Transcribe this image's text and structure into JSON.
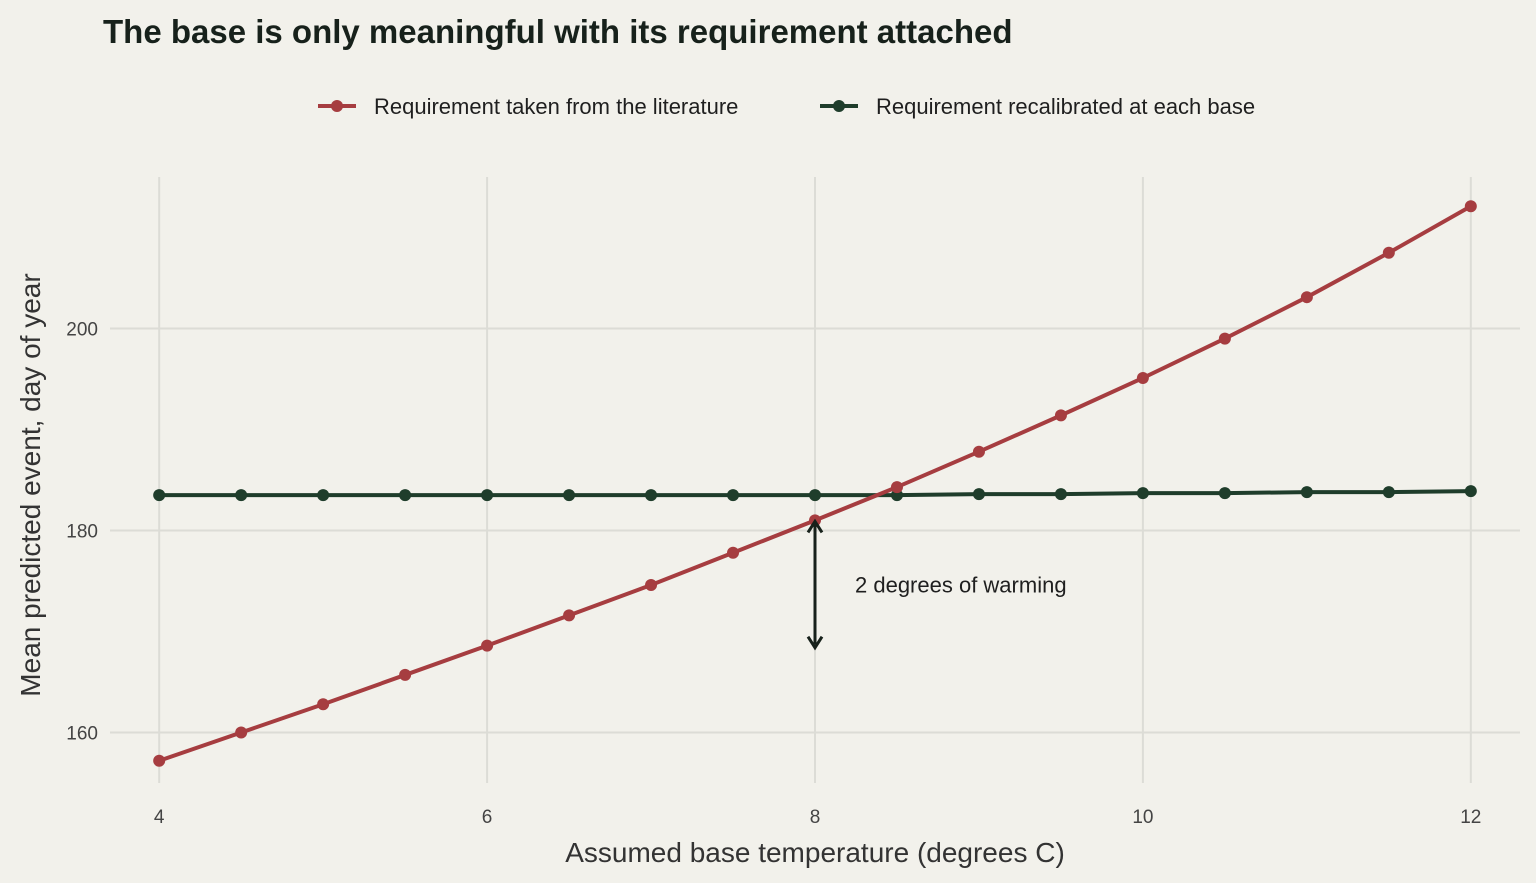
{
  "chart_data": {
    "type": "line",
    "title": "The base is only meaningful with its requirement attached",
    "xlabel": "Assumed base temperature (degrees C)",
    "ylabel": "Mean predicted event, day of year",
    "xlim": [
      3.7,
      12.3
    ],
    "ylim": [
      155,
      215
    ],
    "xticks": [
      4,
      6,
      8,
      10,
      12
    ],
    "yticks": [
      160,
      180,
      200
    ],
    "x": [
      4,
      4.5,
      5,
      5.5,
      6,
      6.5,
      7,
      7.5,
      8,
      8.5,
      9,
      9.5,
      10,
      10.5,
      11,
      11.5,
      12
    ],
    "series": [
      {
        "name": "Requirement taken from the literature",
        "color": "#a63d40",
        "values": [
          157.2,
          160.0,
          162.8,
          165.7,
          168.6,
          171.6,
          174.6,
          177.8,
          181.0,
          184.3,
          187.8,
          191.4,
          195.1,
          199.0,
          203.1,
          207.5,
          212.1
        ]
      },
      {
        "name": "Requirement recalibrated at each base",
        "color": "#1f3d2b",
        "values": [
          183.5,
          183.5,
          183.5,
          183.5,
          183.5,
          183.5,
          183.5,
          183.5,
          183.5,
          183.5,
          183.6,
          183.6,
          183.7,
          183.7,
          183.8,
          183.8,
          183.9
        ]
      }
    ],
    "annotation": {
      "text": "2 degrees of warming",
      "x": 8,
      "y_from": 181.0,
      "y_to": 168.3
    },
    "legend_position": "top-center",
    "grid": true
  }
}
